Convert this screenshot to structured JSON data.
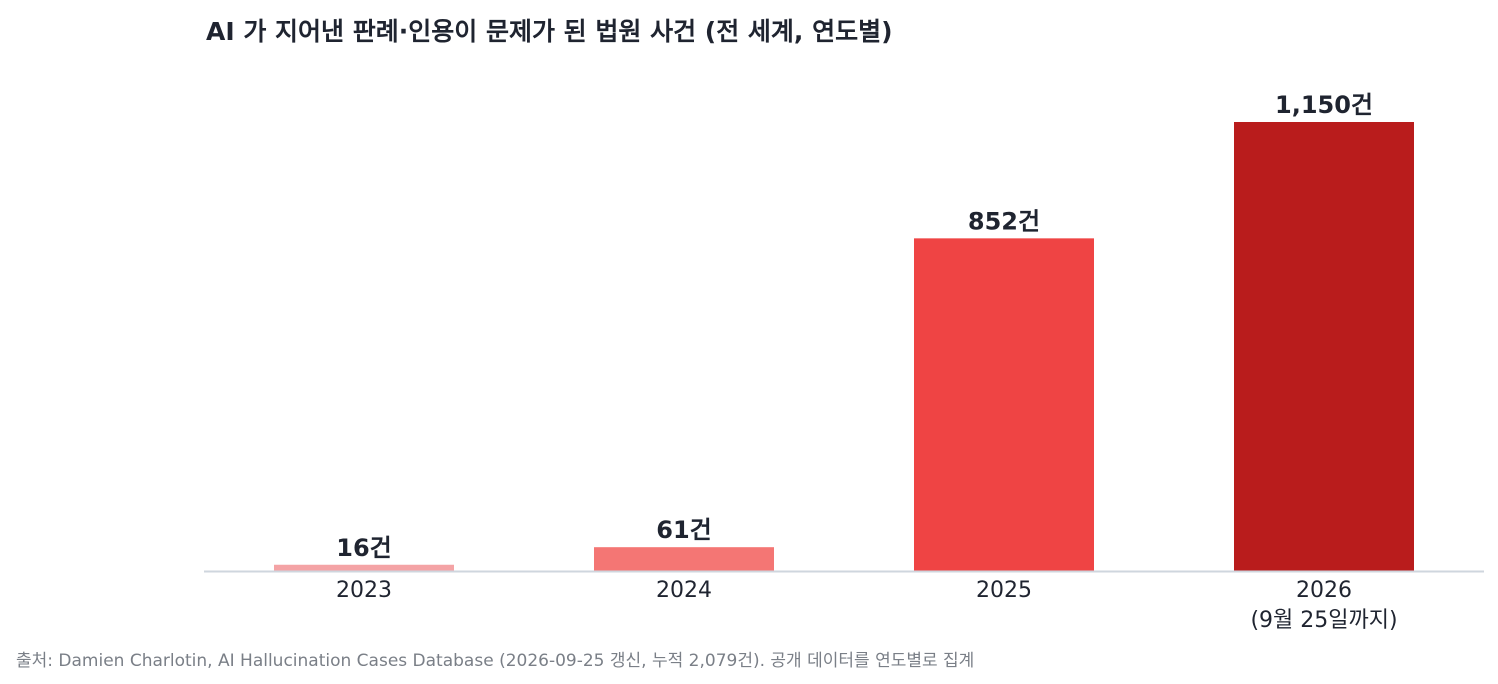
{
  "chart_data": {
    "type": "bar",
    "title": "AI 가 지어낸 판례·인용이 문제가 된 법원 사건 (전 세계, 연도별)",
    "xlabel": "",
    "ylabel": "",
    "ylim": [
      0,
      1150
    ],
    "grid": false,
    "legend": "none",
    "categories": [
      [
        "2023"
      ],
      [
        "2024"
      ],
      [
        "2025"
      ],
      [
        "2026",
        "(9월 25일까지)"
      ]
    ],
    "values": [
      16,
      61,
      852,
      1150
    ],
    "value_labels": [
      "16건",
      "61건",
      "852건",
      "1,150건"
    ],
    "bar_colors": [
      "#f4a3a5",
      "#f47674",
      "#ef4444",
      "#b91c1c"
    ],
    "axis_color": "#cfd6de"
  },
  "source_note": "출처: Damien Charlotin, AI Hallucination Cases Database (2026-09-25 갱신, 누적 2,079건). 공개 데이터를 연도별로 집계"
}
